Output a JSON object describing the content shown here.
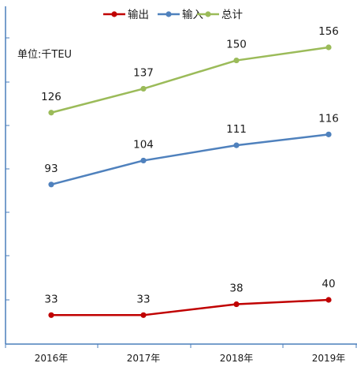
{
  "chart_data": {
    "type": "line",
    "categories": [
      "2016年",
      "2017年",
      "2018年",
      "2019年"
    ],
    "series": [
      {
        "name": "输出",
        "values": [
          33,
          33,
          38,
          40
        ],
        "color": "#c00000"
      },
      {
        "name": "输入",
        "values": [
          93,
          104,
          111,
          116
        ],
        "color": "#4f81bd"
      },
      {
        "name": "总计",
        "values": [
          126,
          137,
          150,
          156
        ],
        "color": "#9bbb59"
      }
    ],
    "unit_label": "单位:千TEU",
    "legend_position": "top",
    "grid": false,
    "axis_color": "#4a7ebb",
    "ylim": [
      0,
      175
    ]
  }
}
